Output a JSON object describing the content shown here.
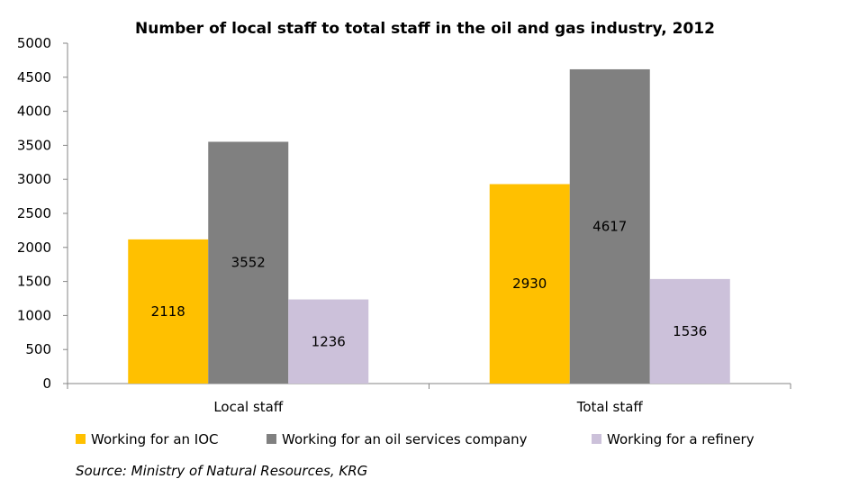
{
  "chart_data": {
    "type": "bar",
    "title": "Number of local staff to total staff in the oil and gas industry, 2012",
    "categories": [
      "Local staff",
      "Total staff"
    ],
    "series": [
      {
        "name": "Working for an IOC",
        "values": [
          2118,
          2930
        ],
        "color": "#FFC000"
      },
      {
        "name": "Working for an oil services company",
        "values": [
          3552,
          4617
        ],
        "color": "#808080"
      },
      {
        "name": "Working for a refinery",
        "values": [
          1236,
          1536
        ],
        "color": "#CCC1DA"
      }
    ],
    "ylim": [
      0,
      5000
    ],
    "yticks": [
      0,
      500,
      1000,
      1500,
      2000,
      2500,
      3000,
      3500,
      4000,
      4500,
      5000
    ],
    "xlabel": "",
    "ylabel": "",
    "grid": false,
    "legend_position": "bottom",
    "data_labels": true
  },
  "source": "Source: Ministry of Natural Resources, KRG"
}
